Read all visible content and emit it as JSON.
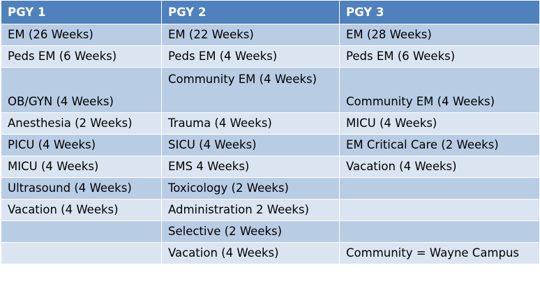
{
  "headers": [
    "PGY 1",
    "PGY 2",
    "PGY 3"
  ],
  "rows": [
    [
      "EM (26 Weeks)",
      "EM (22  Weeks)",
      "EM (28 Weeks)"
    ],
    [
      "Peds EM (6 Weeks)",
      "Peds EM (4 Weeks)",
      "Peds EM (6 Weeks)"
    ],
    [
      "OB/GYN (4 Weeks)",
      "Community EM (4 Weeks)",
      "Community EM (4 Weeks)"
    ],
    [
      "Anesthesia (2 Weeks)",
      "Trauma (4 Weeks)",
      "MICU (4 Weeks)"
    ],
    [
      "PICU (4 Weeks)",
      "SICU (4 Weeks)",
      "EM Critical Care (2 Weeks)"
    ],
    [
      "MICU (4 Weeks)",
      "EMS 4 Weeks)",
      "Vacation (4 Weeks)"
    ],
    [
      "Ultrasound (4 Weeks)",
      "Toxicology (2 Weeks)",
      ""
    ],
    [
      "Vacation (4 Weeks)",
      "Administration 2 Weeks)",
      ""
    ],
    [
      "",
      "Selective (2 Weeks)",
      ""
    ],
    [
      "",
      "Vacation (4 Weeks)",
      "Community = Wayne Campus"
    ]
  ],
  "colors": {
    "header_bg": "#4f81bd",
    "row_dark": "#b8cce4",
    "row_light": "#dbe5f1"
  }
}
